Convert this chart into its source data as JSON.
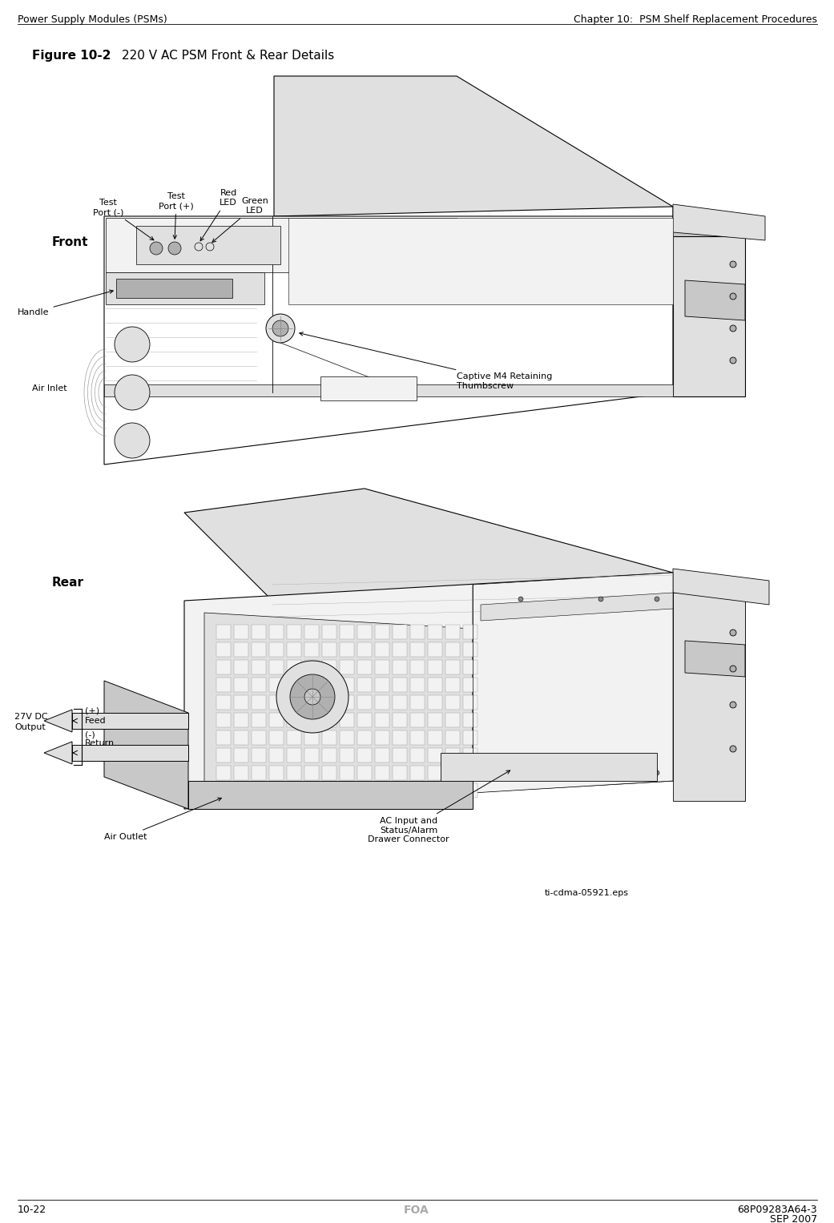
{
  "page_width": 10.41,
  "page_height": 15.27,
  "dpi": 100,
  "bg_color": "#ffffff",
  "header_left": "Power Supply Modules (PSMs)",
  "header_right": "Chapter 10:  PSM Shelf Replacement Procedures",
  "footer_left": "10-22",
  "footer_center": "FOA",
  "footer_right_line1": "68P09283A64-3",
  "footer_right_line2": "SEP 2007",
  "footer_color": "#aaaaaa",
  "figure_label": "Figure 10-2",
  "figure_title": "220 V AC PSM Front & Rear Details",
  "annotation_source": "ti-cdma-05921.eps",
  "line_color": "#000000",
  "face_color_white": "#ffffff",
  "face_color_light": "#f2f2f2",
  "face_color_mid": "#e0e0e0",
  "face_color_dark": "#c8c8c8",
  "face_color_darker": "#b0b0b0",
  "anno_fontsize": 8,
  "label_fontsize": 10
}
